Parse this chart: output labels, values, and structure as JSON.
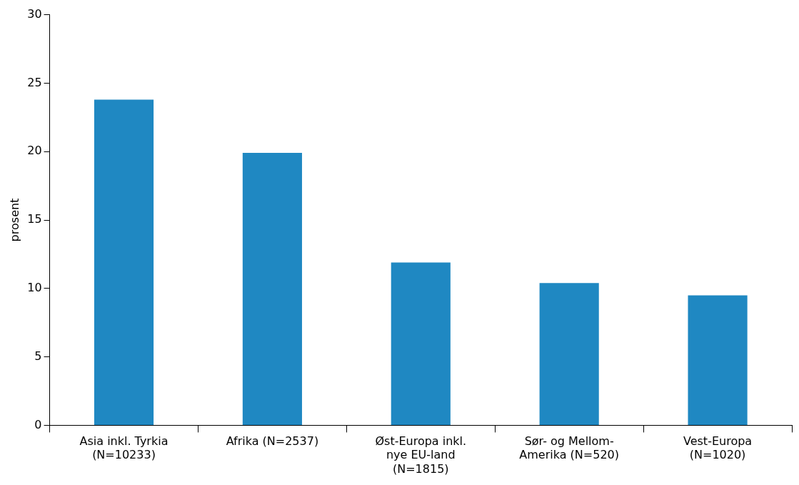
{
  "chart_data": {
    "type": "bar",
    "ylabel": "prosent",
    "categories": [
      "Asia inkl. Tyrkia (N=10233)",
      "Afrika (N=2537)",
      "Øst-Europa inkl. nye EU-land (N=1815)",
      "Sør- og Mellom-Amerika (N=520)",
      "Vest-Europa (N=1020)"
    ],
    "values": [
      23.8,
      19.9,
      11.9,
      10.4,
      9.5
    ],
    "color": "#1f88c2",
    "ylim": [
      0,
      30
    ],
    "yticks": [
      0,
      5,
      10,
      15,
      20,
      25,
      30
    ],
    "grid": false,
    "legend": false
  }
}
